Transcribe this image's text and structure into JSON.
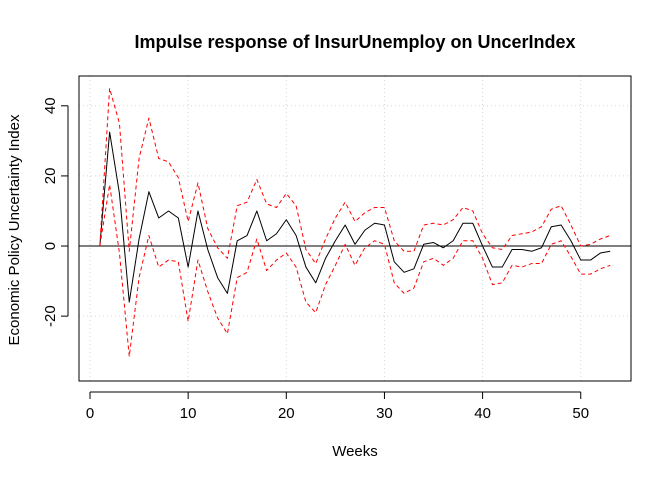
{
  "chart_data": {
    "type": "line",
    "title": "Impulse response of InsurUnemploy on UncerIndex",
    "xlabel": "Weeks",
    "ylabel": "Economic Policy Uncertainty Index",
    "xlim": [
      -1.12,
      55.12
    ],
    "ylim": [
      -38.5,
      48.5
    ],
    "xticks": [
      0,
      10,
      20,
      30,
      40,
      50
    ],
    "yticks": [
      -20,
      0,
      20,
      40
    ],
    "grid": true,
    "zero_line": true,
    "x": [
      1,
      2,
      3,
      4,
      5,
      6,
      7,
      8,
      9,
      10,
      11,
      12,
      13,
      14,
      15,
      16,
      17,
      18,
      19,
      20,
      21,
      22,
      23,
      24,
      25,
      26,
      27,
      28,
      29,
      30,
      31,
      32,
      33,
      34,
      35,
      36,
      37,
      38,
      39,
      40,
      41,
      42,
      43,
      44,
      45,
      46,
      47,
      48,
      49,
      50,
      51,
      52,
      53
    ],
    "series": [
      {
        "style": "solid",
        "color": "#000000",
        "values": [
          0,
          32.5,
          15,
          -16,
          2,
          15.5,
          8,
          10,
          8,
          -6,
          10,
          -1,
          -9,
          -13.5,
          1.5,
          3,
          10,
          1.5,
          3.5,
          7.5,
          3,
          -6,
          -10.5,
          -3.5,
          1.5,
          6,
          0.5,
          4.5,
          6.5,
          6,
          -4.5,
          -7.5,
          -6.5,
          0.5,
          1,
          -0.5,
          1.5,
          6.5,
          6.5,
          0,
          -6,
          -6,
          -1,
          -1,
          -1.5,
          -0.5,
          5.5,
          6,
          1.5,
          -4,
          -4,
          -2,
          -1.5
        ]
      },
      {
        "style": "dashed",
        "color": "#ff0000",
        "values": [
          0,
          45,
          35,
          -1.5,
          25,
          36.5,
          25,
          24,
          19.5,
          7,
          18,
          5,
          -0.5,
          -3.5,
          11.5,
          12.5,
          19,
          12,
          11,
          15,
          11.5,
          -1,
          -5,
          2,
          8,
          12.5,
          7,
          9.5,
          11,
          11,
          1.5,
          -1.5,
          -1.5,
          6,
          6.5,
          6,
          7.5,
          11,
          10,
          3.5,
          -0.5,
          -1,
          3,
          3.5,
          4,
          5.5,
          10.5,
          11.5,
          6,
          0,
          0.5,
          2,
          3
        ]
      },
      {
        "style": "dashed",
        "color": "#ff0000",
        "values": [
          0,
          17.5,
          -2,
          -31.5,
          -9,
          3,
          -6,
          -4,
          -4.5,
          -21.5,
          -4,
          -13,
          -20.5,
          -25,
          -9,
          -7.5,
          2,
          -7,
          -4,
          -2,
          -6,
          -16,
          -19,
          -11,
          -5.5,
          0.5,
          -5.5,
          -0.5,
          1.5,
          0.5,
          -10.5,
          -13.5,
          -12,
          -4.5,
          -3.5,
          -5.5,
          -3.5,
          1.5,
          1.5,
          -3.5,
          -11,
          -10.5,
          -5.5,
          -6,
          -5,
          -5,
          0.5,
          1.5,
          -3,
          -8,
          -8,
          -6.5,
          -5.5
        ]
      }
    ]
  }
}
